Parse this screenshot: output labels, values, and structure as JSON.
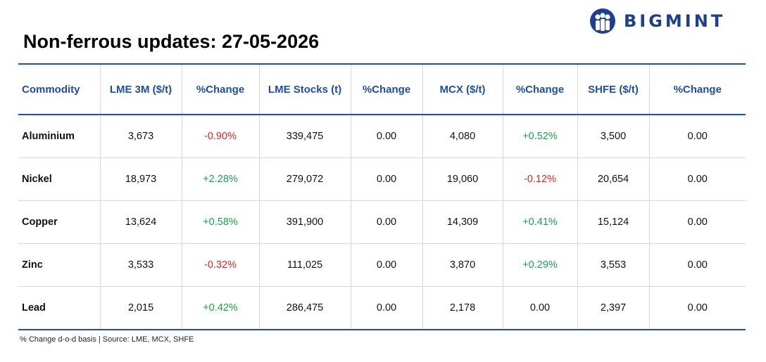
{
  "brand": {
    "name": "BIGMINT",
    "logo_icon": "people-circle-icon",
    "color": "#1d3f8f"
  },
  "title": "Non-ferrous updates: 27-05-2026",
  "colors": {
    "header": "#1d4ea3",
    "negative": "#e02424",
    "positive": "#16a34a"
  },
  "table": {
    "headers": [
      "Commodity",
      "LME 3M ($/t)",
      "%Change",
      "LME Stocks (t)",
      "%Change",
      "MCX ($/t)",
      "%Change",
      "SHFE ($/t)",
      "%Change"
    ],
    "rows": [
      {
        "commodity": "Aluminium",
        "lme3m": "3,673",
        "lme3m_chg": "-0.90%",
        "lme_stocks": "339,475",
        "stocks_chg": "0.00",
        "mcx": "4,080",
        "mcx_chg": "+0.52%",
        "shfe": "3,500",
        "shfe_chg": "0.00"
      },
      {
        "commodity": "Nickel",
        "lme3m": "18,973",
        "lme3m_chg": "+2.28%",
        "lme_stocks": "279,072",
        "stocks_chg": "0.00",
        "mcx": "19,060",
        "mcx_chg": "-0.12%",
        "shfe": "20,654",
        "shfe_chg": "0.00"
      },
      {
        "commodity": "Copper",
        "lme3m": "13,624",
        "lme3m_chg": "+0.58%",
        "lme_stocks": "391,900",
        "stocks_chg": "0.00",
        "mcx": "14,309",
        "mcx_chg": "+0.41%",
        "shfe": "15,124",
        "shfe_chg": "0.00"
      },
      {
        "commodity": "Zinc",
        "lme3m": "3,533",
        "lme3m_chg": "-0.32%",
        "lme_stocks": "111,025",
        "stocks_chg": "0.00",
        "mcx": "3,870",
        "mcx_chg": "+0.29%",
        "shfe": "3,553",
        "shfe_chg": "0.00"
      },
      {
        "commodity": "Lead",
        "lme3m": "2,015",
        "lme3m_chg": "+0.42%",
        "lme_stocks": "286,475",
        "stocks_chg": "0.00",
        "mcx": "2,178",
        "mcx_chg": "0.00",
        "shfe": "2,397",
        "shfe_chg": "0.00"
      }
    ]
  },
  "footnote": "% Change d-o-d basis | Source: LME, MCX, SHFE"
}
